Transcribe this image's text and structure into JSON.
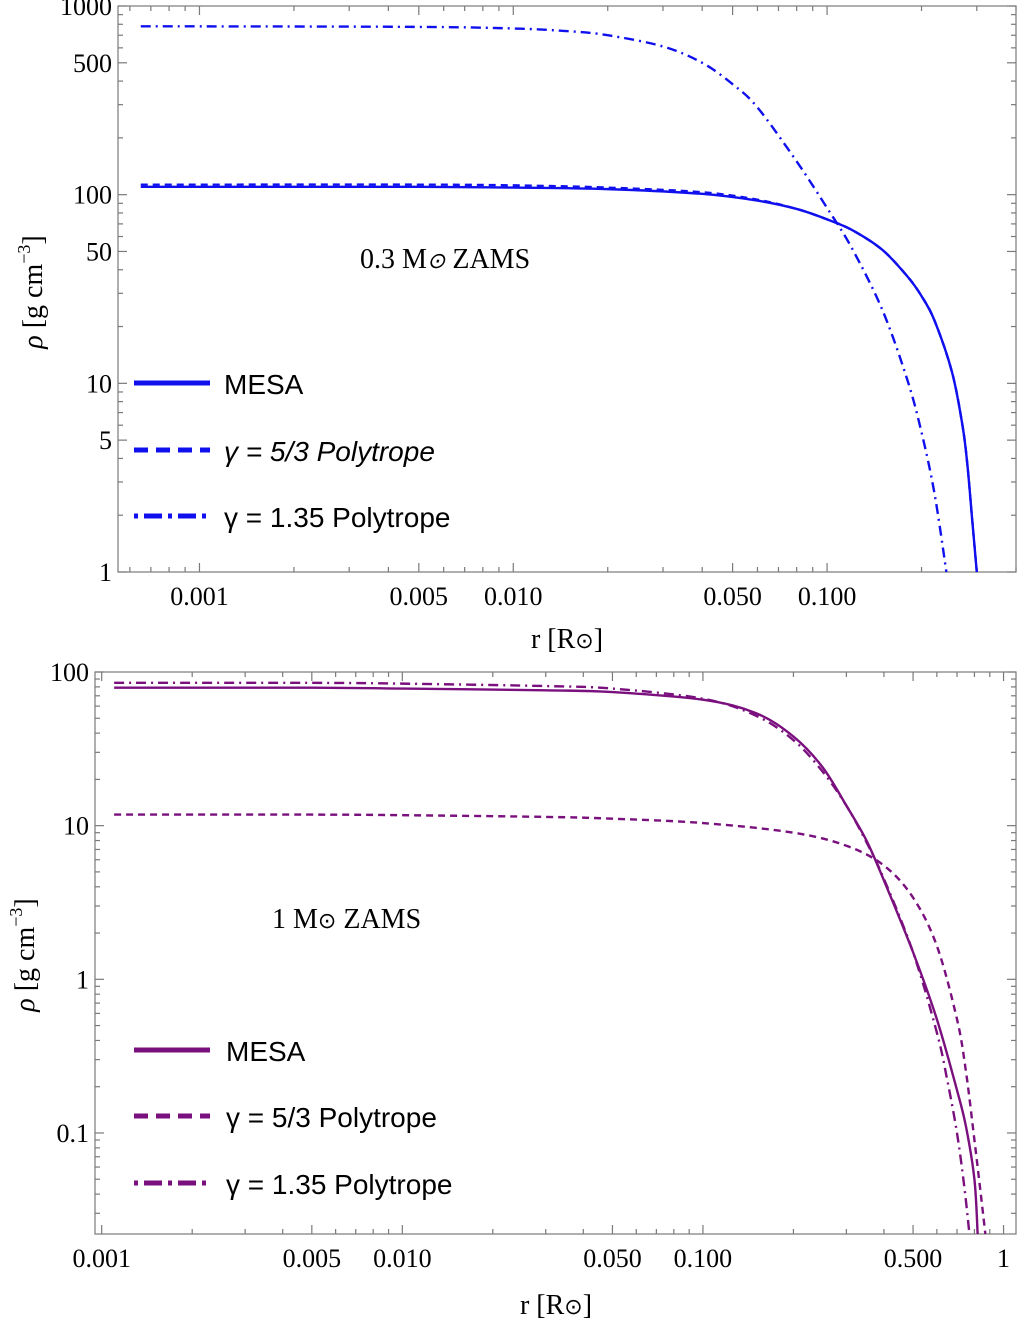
{
  "chart_data": [
    {
      "type": "line",
      "annotation": {
        "text": "0.3 M",
        "sub": "⊙",
        "suffix": " ZAMS"
      },
      "xlabel": {
        "text": "r [R",
        "sub": "⊙",
        "suffix": "]"
      },
      "ylabel": {
        "rho": "ρ",
        "units": " [g cm",
        "exp": "−3",
        "close": "]"
      },
      "xscale": "log",
      "yscale": "log",
      "xlim": [
        0.00055,
        0.4
      ],
      "ylim": [
        1,
        1000
      ],
      "xticks": [
        {
          "value": 0.001,
          "label": "0.001"
        },
        {
          "value": 0.005,
          "label": "0.005"
        },
        {
          "value": 0.01,
          "label": "0.010"
        },
        {
          "value": 0.05,
          "label": "0.050"
        },
        {
          "value": 0.1,
          "label": "0.100"
        }
      ],
      "yticks": [
        {
          "value": 1,
          "label": "1"
        },
        {
          "value": 5,
          "label": "5"
        },
        {
          "value": 10,
          "label": "10"
        },
        {
          "value": 50,
          "label": "50"
        },
        {
          "value": 100,
          "label": "100"
        },
        {
          "value": 500,
          "label": "500"
        },
        {
          "value": 1000,
          "label": "1000"
        }
      ],
      "legend_position": "bottom-left",
      "color": "#1010ee",
      "series": [
        {
          "name": "MESA",
          "style": "solid",
          "x": [
            0.00065,
            0.001,
            0.005,
            0.01,
            0.02,
            0.04,
            0.06,
            0.08,
            0.1,
            0.12,
            0.15,
            0.18,
            0.2,
            0.22,
            0.25,
            0.27,
            0.28,
            0.29,
            0.3
          ],
          "y": [
            110,
            110,
            110,
            109,
            107,
            101,
            93,
            84,
            74,
            65,
            51,
            37,
            29,
            21.5,
            11.5,
            6,
            3.7,
            1.9,
            1.0
          ]
        },
        {
          "name": "γ = 5/3 Polytrope",
          "style": "dashed",
          "x": [
            0.00065,
            0.001,
            0.005,
            0.01,
            0.02,
            0.04,
            0.06,
            0.08,
            0.1,
            0.12,
            0.15,
            0.18,
            0.2,
            0.22,
            0.25,
            0.27,
            0.28,
            0.29,
            0.3
          ],
          "y": [
            113,
            113,
            113,
            112,
            109,
            103,
            94,
            84,
            74,
            65,
            51,
            37,
            29,
            21.5,
            11.5,
            6,
            3.7,
            1.9,
            1.0
          ]
        },
        {
          "name": "γ = 1.35 Polytrope",
          "style": "dashdot",
          "x": [
            0.00065,
            0.001,
            0.005,
            0.01,
            0.015,
            0.02,
            0.03,
            0.04,
            0.05,
            0.06,
            0.08,
            0.1,
            0.12,
            0.15,
            0.18,
            0.2,
            0.22,
            0.24
          ],
          "y": [
            780,
            780,
            775,
            760,
            735,
            700,
            610,
            500,
            385,
            290,
            150,
            85,
            52,
            24.5,
            10.5,
            5.5,
            2.6,
            1.0
          ]
        }
      ],
      "legend": [
        {
          "label": "MESA",
          "style": "solid"
        },
        {
          "label": "γ = 5/3 Polytrope",
          "style": "dashed"
        },
        {
          "label": "γ = 1.35 Polytrope",
          "style": "dashdot"
        }
      ]
    },
    {
      "type": "line",
      "annotation": {
        "text": "1 M",
        "sub": "⊙",
        "suffix": " ZAMS"
      },
      "xlabel": {
        "text": "r [R",
        "sub": "⊙",
        "suffix": "]"
      },
      "ylabel": {
        "rho": "ρ",
        "units": " [g cm",
        "exp": "−3",
        "close": "]"
      },
      "xscale": "log",
      "yscale": "log",
      "xlim": [
        0.00095,
        1.1
      ],
      "ylim": [
        0.022,
        100
      ],
      "xticks": [
        {
          "value": 0.001,
          "label": "0.001"
        },
        {
          "value": 0.005,
          "label": "0.005"
        },
        {
          "value": 0.01,
          "label": "0.010"
        },
        {
          "value": 0.05,
          "label": "0.050"
        },
        {
          "value": 0.1,
          "label": "0.100"
        },
        {
          "value": 0.5,
          "label": "0.500"
        },
        {
          "value": 1,
          "label": "1"
        }
      ],
      "yticks": [
        {
          "value": 0.1,
          "label": "0.1"
        },
        {
          "value": 1,
          "label": "1"
        },
        {
          "value": 10,
          "label": "10"
        },
        {
          "value": 100,
          "label": "100"
        }
      ],
      "legend_position": "bottom-left",
      "color": "#7a0f7e",
      "series": [
        {
          "name": "MESA",
          "style": "solid",
          "x": [
            0.0011,
            0.005,
            0.01,
            0.03,
            0.05,
            0.1,
            0.15,
            0.2,
            0.25,
            0.3,
            0.35,
            0.4,
            0.5,
            0.6,
            0.7,
            0.75,
            0.8,
            0.82
          ],
          "y": [
            79,
            79,
            78,
            76,
            74,
            66,
            54,
            38,
            24,
            13.5,
            8,
            4.4,
            1.5,
            0.55,
            0.19,
            0.11,
            0.05,
            0.022
          ]
        },
        {
          "name": "γ = 5/3 Polytrope",
          "style": "dashed",
          "x": [
            0.0011,
            0.005,
            0.01,
            0.03,
            0.05,
            0.1,
            0.2,
            0.3,
            0.4,
            0.5,
            0.6,
            0.7,
            0.75,
            0.8,
            0.84,
            0.87
          ],
          "y": [
            11.8,
            11.8,
            11.7,
            11.4,
            11.1,
            10.4,
            9.0,
            7.4,
            5.5,
            3.4,
            1.65,
            0.55,
            0.25,
            0.09,
            0.04,
            0.022
          ]
        },
        {
          "name": "γ = 1.35 Polytrope",
          "style": "dashdot",
          "x": [
            0.0011,
            0.005,
            0.01,
            0.03,
            0.05,
            0.1,
            0.15,
            0.2,
            0.25,
            0.3,
            0.35,
            0.4,
            0.5,
            0.6,
            0.65,
            0.7,
            0.74,
            0.77
          ],
          "y": [
            85,
            85,
            84,
            81,
            78,
            67,
            52,
            36,
            22.5,
            13.5,
            7.8,
            4.5,
            1.5,
            0.45,
            0.22,
            0.1,
            0.045,
            0.022
          ]
        }
      ],
      "legend": [
        {
          "label": "MESA",
          "style": "solid"
        },
        {
          "label": "γ = 5/3 Polytrope",
          "style": "dashed"
        },
        {
          "label": "γ = 1.35 Polytrope",
          "style": "dashdot"
        }
      ]
    }
  ]
}
